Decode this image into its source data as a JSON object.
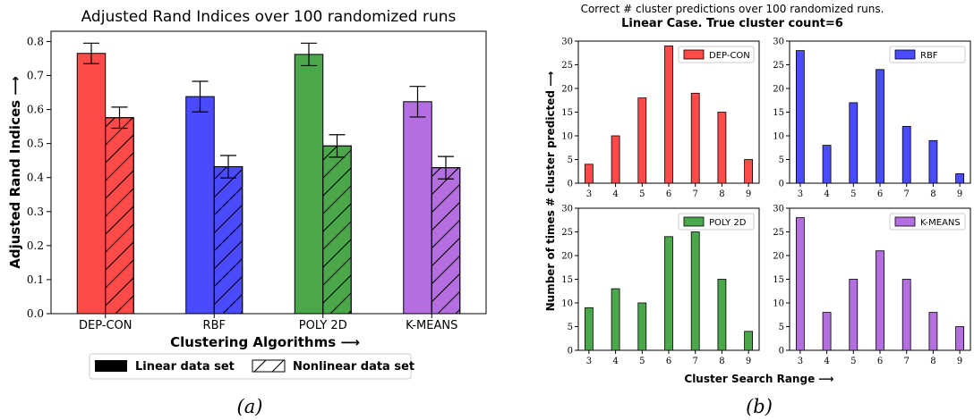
{
  "left_chart": {
    "title": "Adjusted Rand Indices over 100 randomized runs",
    "ylabel": "Adjusted Rand Indices ⟶",
    "xlabel": "Clustering Algorithms ⟶",
    "caption": "(a)",
    "legend": [
      {
        "label": "Linear data set",
        "style": "solid"
      },
      {
        "label": "Nonlinear data set",
        "style": "hatched"
      }
    ]
  },
  "right_chart": {
    "title_line1": "Correct # cluster predictions over 100 randomized runs.",
    "title_line2": "Linear Case. True cluster count=6",
    "ylabel": "Number of times # cluster predicted ⟶",
    "xlabel": "Cluster Search Range ⟶",
    "caption": "(b)"
  },
  "chart_data": [
    {
      "type": "bar",
      "title": "Adjusted Rand Indices over 100 randomized runs",
      "xlabel": "Clustering Algorithms ⟶",
      "ylabel": "Adjusted Rand Indices ⟶",
      "ylim": [
        0,
        0.83
      ],
      "yticks": [
        0.0,
        0.1,
        0.2,
        0.3,
        0.4,
        0.5,
        0.6,
        0.7,
        0.8
      ],
      "categories": [
        "DEP-CON",
        "RBF",
        "POLY 2D",
        "K-MEANS"
      ],
      "colors": [
        "#ff4a4a",
        "#4a4aff",
        "#4aa84a",
        "#b36ee0"
      ],
      "series": [
        {
          "name": "Linear data set",
          "values": [
            0.765,
            0.638,
            0.762,
            0.623
          ],
          "err": [
            0.03,
            0.045,
            0.033,
            0.045
          ]
        },
        {
          "name": "Nonlinear data set",
          "values": [
            0.576,
            0.432,
            0.493,
            0.429
          ],
          "err": [
            0.031,
            0.033,
            0.033,
            0.033
          ]
        }
      ],
      "legend_position": "bottom"
    },
    {
      "type": "bar",
      "x": [
        3,
        4,
        5,
        6,
        7,
        8,
        9
      ],
      "ylim": [
        0,
        30
      ],
      "yticks": [
        0,
        5,
        10,
        15,
        20,
        25,
        30
      ],
      "subplots": [
        {
          "name": "DEP-CON",
          "color": "#ff4a4a",
          "values": [
            4,
            10,
            18,
            29,
            19,
            15,
            5
          ],
          "legend_position": "top-right"
        },
        {
          "name": "RBF",
          "color": "#4a4aff",
          "values": [
            28,
            8,
            17,
            24,
            12,
            9,
            2
          ],
          "legend_position": "top-right"
        },
        {
          "name": "POLY 2D",
          "color": "#4aa84a",
          "values": [
            9,
            13,
            10,
            24,
            25,
            15,
            4
          ],
          "legend_position": "top-right"
        },
        {
          "name": "K-MEANS",
          "color": "#b36ee0",
          "values": [
            28,
            8,
            15,
            21,
            15,
            8,
            5
          ],
          "legend_position": "top-right"
        }
      ]
    }
  ]
}
